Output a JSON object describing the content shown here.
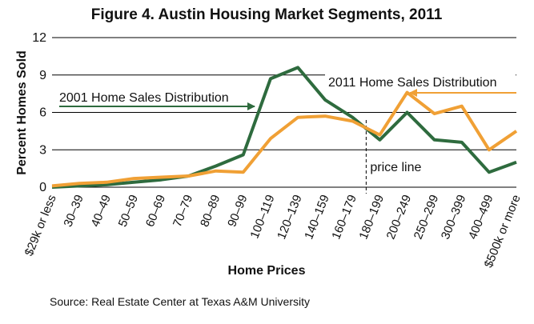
{
  "chart_data": {
    "type": "line",
    "title": "Figure 4. Austin Housing Market Segments, 2011",
    "x_label": "Home Prices",
    "y_label": "Percent Homes Sold",
    "source": "Source: Real Estate Center at Texas A&M University",
    "annotation": "price line",
    "categories": [
      "$29k or less",
      "30–39",
      "40–49",
      "50–59",
      "60–69",
      "70–79",
      "80–89",
      "90–99",
      "100–119",
      "120–139",
      "140–159",
      "160–179",
      "180–199",
      "200–249",
      "250–299",
      "300–399",
      "400–499",
      "$500k or more"
    ],
    "series": [
      {
        "name": "2001 Home Sales Distribution",
        "color": "#2e6b3e",
        "values": [
          0.0,
          0.1,
          0.2,
          0.4,
          0.6,
          0.9,
          1.7,
          2.6,
          8.7,
          9.6,
          7.0,
          5.6,
          3.8,
          6.0,
          3.8,
          3.6,
          1.2,
          2.0
        ]
      },
      {
        "name": "2011 Home Sales Distribution",
        "color": "#f0a035",
        "values": [
          0.1,
          0.3,
          0.4,
          0.7,
          0.8,
          0.9,
          1.3,
          1.2,
          3.9,
          5.6,
          5.7,
          5.3,
          4.2,
          7.6,
          5.9,
          6.5,
          3.0,
          4.5
        ]
      }
    ],
    "ylim": [
      0,
      12
    ],
    "yticks": [
      0,
      3,
      6,
      9,
      12
    ],
    "grid": true
  }
}
